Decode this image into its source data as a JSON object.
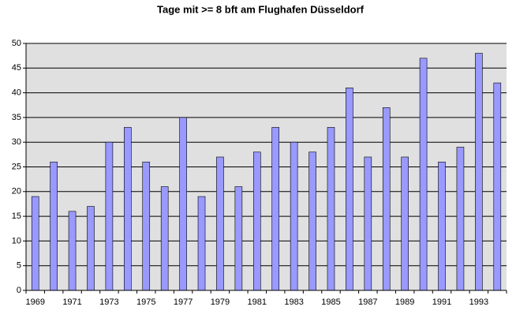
{
  "chart_data": {
    "type": "bar",
    "title": "Tage mit >= 8 bft am Flughafen Düsseldorf",
    "categories": [
      "1969",
      null,
      "1971",
      null,
      "1973",
      null,
      "1975",
      null,
      "1977",
      null,
      "1979",
      null,
      "1981",
      null,
      "1983",
      null,
      "1985",
      null,
      "1987",
      null,
      "1989",
      null,
      "1991",
      null,
      "1993",
      null
    ],
    "values": [
      19,
      26,
      16,
      17,
      30,
      33,
      26,
      21,
      35,
      19,
      27,
      21,
      28,
      33,
      30,
      28,
      33,
      41,
      27,
      37,
      27,
      47,
      26,
      29,
      48,
      42
    ],
    "color": "#9999ff",
    "ylim": [
      0,
      50
    ],
    "yticks": [
      0,
      5,
      10,
      15,
      20,
      25,
      30,
      35,
      40,
      45,
      50
    ],
    "grid": true
  }
}
